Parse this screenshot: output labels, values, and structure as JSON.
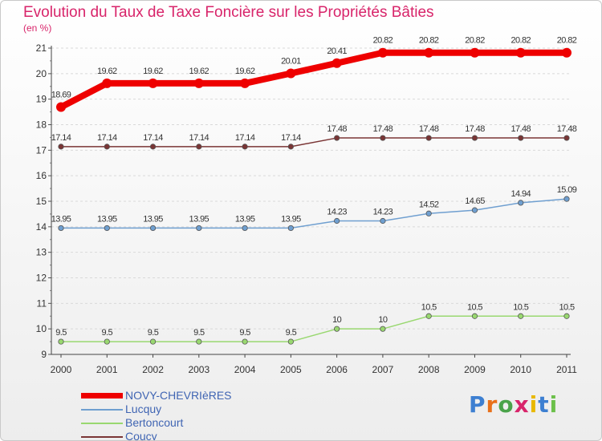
{
  "title": "Evolution du Taux de Taxe Foncière sur les Propriétés Bâties",
  "subtitle": "(en %)",
  "chart_data": {
    "type": "line",
    "x": [
      "2000",
      "2001",
      "2002",
      "2003",
      "2004",
      "2005",
      "2006",
      "2007",
      "2008",
      "2009",
      "2010",
      "2011"
    ],
    "ylim": [
      9,
      21
    ],
    "yticks": [
      9,
      10,
      11,
      12,
      13,
      14,
      15,
      16,
      17,
      18,
      19,
      20,
      21
    ],
    "series": [
      {
        "name": "NOVY-CHEVRIèRES",
        "color": "#ee0000",
        "values": [
          18.69,
          19.62,
          19.62,
          19.62,
          19.62,
          20.01,
          20.41,
          20.82,
          20.82,
          20.82,
          20.82,
          20.82
        ],
        "labels": [
          "18.69",
          "19.62",
          "19.62",
          "19.62",
          "19.62",
          "20.01",
          "20.41",
          "20.82",
          "20.82",
          "20.82",
          "20.82",
          "20.82"
        ]
      },
      {
        "name": "Lucquy",
        "color": "#6f9fd0",
        "values": [
          13.95,
          13.95,
          13.95,
          13.95,
          13.95,
          13.95,
          14.23,
          14.23,
          14.52,
          14.65,
          14.94,
          15.09
        ],
        "labels": [
          "13.95",
          "13.95",
          "13.95",
          "13.95",
          "13.95",
          "13.95",
          "14.23",
          "14.23",
          "14.52",
          "14.65",
          "14.94",
          "15.09"
        ]
      },
      {
        "name": "Bertoncourt",
        "color": "#99d870",
        "values": [
          9.5,
          9.5,
          9.5,
          9.5,
          9.5,
          9.5,
          10,
          10,
          10.5,
          10.5,
          10.5,
          10.5
        ],
        "labels": [
          "9.5",
          "9.5",
          "9.5",
          "9.5",
          "9.5",
          "9.5",
          "10",
          "10",
          "10.5",
          "10.5",
          "10.5",
          "10.5"
        ]
      },
      {
        "name": "Coucy",
        "color": "#7a3535",
        "values": [
          17.14,
          17.14,
          17.14,
          17.14,
          17.14,
          17.14,
          17.48,
          17.48,
          17.48,
          17.48,
          17.48,
          17.48
        ],
        "labels": [
          "17.14",
          "17.14",
          "17.14",
          "17.14",
          "17.14",
          "17.14",
          "17.48",
          "17.48",
          "17.48",
          "17.48",
          "17.48",
          "17.48"
        ]
      }
    ]
  },
  "legend": {
    "items": [
      {
        "label": "NOVY-CHEVRIèRES",
        "color": "#ee0000"
      },
      {
        "label": "Lucquy",
        "color": "#6f9fd0"
      },
      {
        "label": "Bertoncourt",
        "color": "#99d870"
      },
      {
        "label": "Coucy",
        "color": "#7a3535"
      }
    ]
  },
  "logo": {
    "text": "Proxiti",
    "colors": [
      "#3d7fd1",
      "#e8701a",
      "#4aa34a",
      "#d8246a",
      "#e8b800",
      "#3d7fd1",
      "#6cc04a"
    ]
  }
}
